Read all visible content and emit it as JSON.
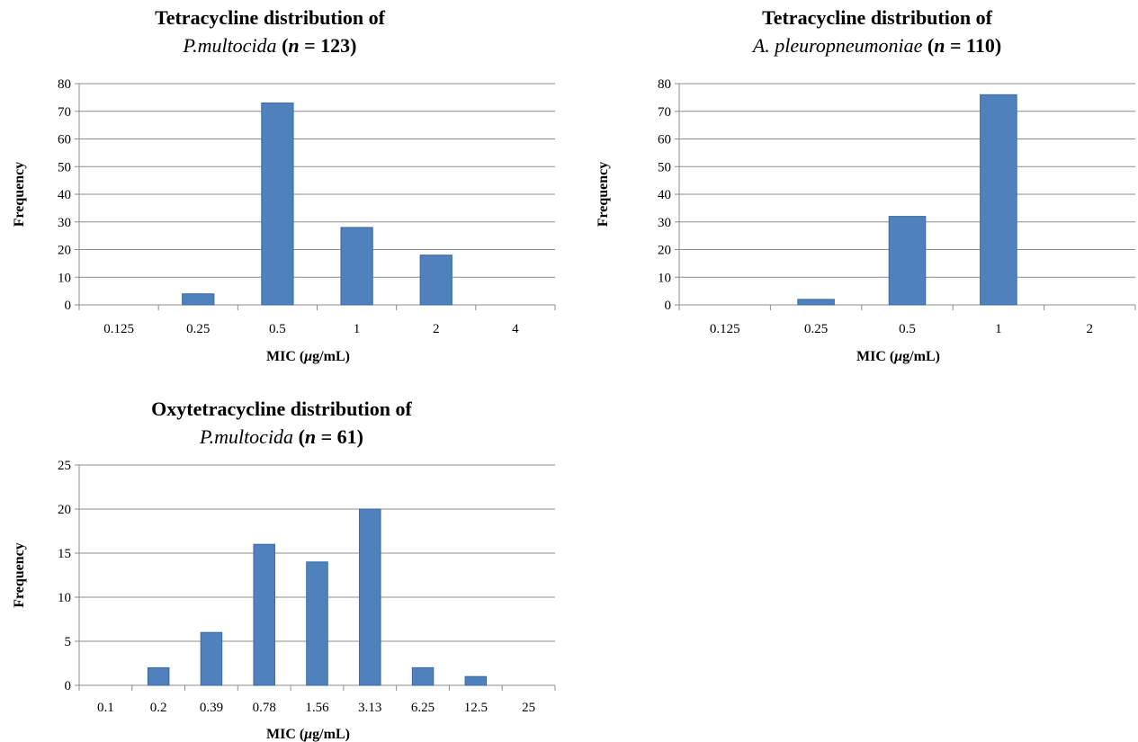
{
  "chart_data": [
    {
      "type": "bar",
      "title_line1": "Tetracycline distribution of",
      "title_line2_italic": "P.multocida",
      "title_line2_n": "n",
      "title_line2_rest": " = 123)",
      "title_paren": "(",
      "xlabel_pre": "MIC (",
      "xlabel_mu": "μ",
      "xlabel_post": "g/mL)",
      "ylabel": "Frequency",
      "categories": [
        "0.125",
        "0.25",
        "0.5",
        "1",
        "2",
        "4"
      ],
      "values": [
        0,
        4,
        73,
        28,
        18,
        0
      ],
      "ylim": [
        0,
        80
      ],
      "yticks": [
        0,
        10,
        20,
        30,
        40,
        50,
        60,
        70,
        80
      ],
      "bar_color": "#4f81bd",
      "grid": true
    },
    {
      "type": "bar",
      "title_line1": "Tetracycline distribution of",
      "title_line2_italic": "A. pleuropneumoniae",
      "title_line2_n": "n",
      "title_line2_rest": " = 110)",
      "title_paren": "(",
      "xlabel_pre": "MIC (",
      "xlabel_mu": "μ",
      "xlabel_post": "g/mL)",
      "ylabel": "Frequency",
      "categories": [
        "0.125",
        "0.25",
        "0.5",
        "1",
        "2"
      ],
      "values": [
        0,
        2,
        32,
        76,
        0
      ],
      "ylim": [
        0,
        80
      ],
      "yticks": [
        0,
        10,
        20,
        30,
        40,
        50,
        60,
        70,
        80
      ],
      "bar_color": "#4f81bd",
      "grid": true
    },
    {
      "type": "bar",
      "title_line1": "Oxytetracycline distribution of",
      "title_line2_italic": "P.multocida",
      "title_line2_n": "n",
      "title_line2_rest": " = 61)",
      "title_paren": "(",
      "xlabel_pre": "MIC (",
      "xlabel_mu": "μ",
      "xlabel_post": "g/mL)",
      "ylabel": "Frequency",
      "categories": [
        "0.1",
        "0.2",
        "0.39",
        "0.78",
        "1.56",
        "3.13",
        "6.25",
        "12.5",
        "25"
      ],
      "values": [
        0,
        2,
        6,
        16,
        14,
        20,
        2,
        1,
        0
      ],
      "ylim": [
        0,
        25
      ],
      "yticks": [
        0,
        5,
        10,
        15,
        20,
        25
      ],
      "bar_color": "#4f81bd",
      "grid": true
    }
  ]
}
